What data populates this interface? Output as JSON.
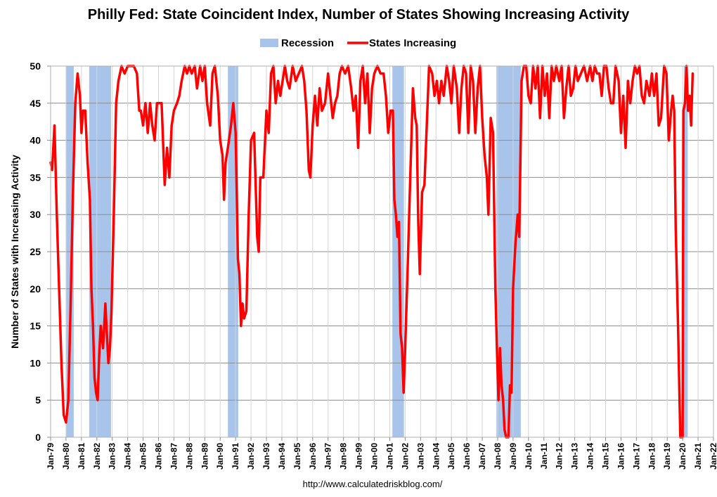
{
  "chart_data": {
    "type": "line",
    "title": "Philly Fed: State Coincident Index, Number of States Showing Increasing Activity",
    "xlabel": "",
    "ylabel": "Number of States with Increasing Activity",
    "ylim": [
      0,
      50
    ],
    "yticks": [
      0,
      5,
      10,
      15,
      20,
      25,
      30,
      35,
      40,
      45,
      50
    ],
    "xlim": [
      1979.0,
      2022.0
    ],
    "xtick_labels": [
      "Jan-79",
      "Jan-80",
      "Jan-81",
      "Jan-82",
      "Jan-83",
      "Jan-84",
      "Jan-85",
      "Jan-86",
      "Jan-87",
      "Jan-88",
      "Jan-89",
      "Jan-90",
      "Jan-91",
      "Jan-92",
      "Jan-93",
      "Jan-94",
      "Jan-95",
      "Jan-96",
      "Jan-97",
      "Jan-98",
      "Jan-99",
      "Jan-00",
      "Jan-01",
      "Jan-02",
      "Jan-03",
      "Jan-04",
      "Jan-05",
      "Jan-06",
      "Jan-07",
      "Jan-08",
      "Jan-09",
      "Jan-10",
      "Jan-11",
      "Jan-12",
      "Jan-13",
      "Jan-14",
      "Jan-15",
      "Jan-16",
      "Jan-17",
      "Jan-18",
      "Jan-19",
      "Jan-20",
      "Jan-21",
      "Jan-22"
    ],
    "grid": true,
    "legend": {
      "position": "top",
      "entries": [
        {
          "label": "Recession",
          "kind": "area",
          "color": "#a9c4ea"
        },
        {
          "label": "States Increasing",
          "kind": "line",
          "color": "#ff0000"
        }
      ]
    },
    "recessions": [
      {
        "start": 1980.0,
        "end": 1980.5
      },
      {
        "start": 1981.5,
        "end": 1982.92
      },
      {
        "start": 1990.5,
        "end": 1991.17
      },
      {
        "start": 2001.17,
        "end": 2001.92
      },
      {
        "start": 2007.92,
        "end": 2009.5
      },
      {
        "start": 2020.08,
        "end": 2020.33
      }
    ],
    "series": [
      {
        "name": "States Increasing",
        "color": "#ff0000",
        "points": [
          [
            1979.0,
            37
          ],
          [
            1979.1,
            36
          ],
          [
            1979.25,
            42
          ],
          [
            1979.4,
            30
          ],
          [
            1979.55,
            20
          ],
          [
            1979.7,
            10
          ],
          [
            1979.85,
            3
          ],
          [
            1980.0,
            2
          ],
          [
            1980.15,
            5
          ],
          [
            1980.3,
            18
          ],
          [
            1980.45,
            33
          ],
          [
            1980.6,
            45
          ],
          [
            1980.75,
            49
          ],
          [
            1980.9,
            46
          ],
          [
            1981.0,
            41
          ],
          [
            1981.1,
            44
          ],
          [
            1981.25,
            44
          ],
          [
            1981.4,
            37
          ],
          [
            1981.55,
            32
          ],
          [
            1981.65,
            20
          ],
          [
            1981.75,
            15
          ],
          [
            1981.85,
            8
          ],
          [
            1981.95,
            6
          ],
          [
            1982.05,
            5
          ],
          [
            1982.15,
            11
          ],
          [
            1982.25,
            15
          ],
          [
            1982.4,
            12
          ],
          [
            1982.55,
            18
          ],
          [
            1982.65,
            14
          ],
          [
            1982.75,
            10
          ],
          [
            1982.85,
            12
          ],
          [
            1982.95,
            17
          ],
          [
            1983.1,
            30
          ],
          [
            1983.25,
            45
          ],
          [
            1983.4,
            48
          ],
          [
            1983.6,
            50
          ],
          [
            1983.8,
            49
          ],
          [
            1984.0,
            50
          ],
          [
            1984.2,
            50
          ],
          [
            1984.4,
            50
          ],
          [
            1984.6,
            49
          ],
          [
            1984.75,
            44
          ],
          [
            1984.85,
            44
          ],
          [
            1985.0,
            42
          ],
          [
            1985.15,
            45
          ],
          [
            1985.3,
            41
          ],
          [
            1985.45,
            45
          ],
          [
            1985.6,
            42
          ],
          [
            1985.75,
            40
          ],
          [
            1985.9,
            45
          ],
          [
            1986.0,
            45
          ],
          [
            1986.2,
            45
          ],
          [
            1986.4,
            34
          ],
          [
            1986.55,
            39
          ],
          [
            1986.7,
            35
          ],
          [
            1986.85,
            42
          ],
          [
            1987.0,
            44
          ],
          [
            1987.2,
            45
          ],
          [
            1987.35,
            46
          ],
          [
            1987.5,
            48
          ],
          [
            1987.7,
            50
          ],
          [
            1987.85,
            49
          ],
          [
            1988.0,
            50
          ],
          [
            1988.15,
            49
          ],
          [
            1988.35,
            50
          ],
          [
            1988.5,
            47
          ],
          [
            1988.7,
            50
          ],
          [
            1988.85,
            48
          ],
          [
            1989.0,
            50
          ],
          [
            1989.15,
            45
          ],
          [
            1989.35,
            42
          ],
          [
            1989.5,
            49
          ],
          [
            1989.65,
            50
          ],
          [
            1989.85,
            46
          ],
          [
            1990.0,
            40
          ],
          [
            1990.15,
            38
          ],
          [
            1990.25,
            32
          ],
          [
            1990.35,
            37
          ],
          [
            1990.5,
            39
          ],
          [
            1990.7,
            42
          ],
          [
            1990.85,
            45
          ],
          [
            1991.0,
            41
          ],
          [
            1991.15,
            24
          ],
          [
            1991.25,
            22
          ],
          [
            1991.35,
            15
          ],
          [
            1991.45,
            18
          ],
          [
            1991.55,
            16
          ],
          [
            1991.7,
            17
          ],
          [
            1991.85,
            30
          ],
          [
            1992.0,
            40
          ],
          [
            1992.2,
            41
          ],
          [
            1992.4,
            27
          ],
          [
            1992.5,
            25
          ],
          [
            1992.6,
            35
          ],
          [
            1992.8,
            35
          ],
          [
            1993.0,
            44
          ],
          [
            1993.15,
            41
          ],
          [
            1993.3,
            49
          ],
          [
            1993.45,
            50
          ],
          [
            1993.6,
            45
          ],
          [
            1993.75,
            48
          ],
          [
            1993.9,
            46
          ],
          [
            1994.05,
            48
          ],
          [
            1994.2,
            50
          ],
          [
            1994.35,
            48
          ],
          [
            1994.5,
            47
          ],
          [
            1994.7,
            50
          ],
          [
            1994.9,
            48
          ],
          [
            1995.1,
            49
          ],
          [
            1995.3,
            50
          ],
          [
            1995.45,
            48
          ],
          [
            1995.6,
            44
          ],
          [
            1995.75,
            36
          ],
          [
            1995.85,
            35
          ],
          [
            1996.0,
            42
          ],
          [
            1996.15,
            46
          ],
          [
            1996.3,
            42
          ],
          [
            1996.45,
            47
          ],
          [
            1996.6,
            44
          ],
          [
            1996.8,
            45
          ],
          [
            1997.0,
            49
          ],
          [
            1997.15,
            46
          ],
          [
            1997.3,
            43
          ],
          [
            1997.45,
            45
          ],
          [
            1997.6,
            46
          ],
          [
            1997.75,
            49
          ],
          [
            1997.9,
            50
          ],
          [
            1998.1,
            49
          ],
          [
            1998.3,
            50
          ],
          [
            1998.5,
            47
          ],
          [
            1998.65,
            44
          ],
          [
            1998.8,
            46
          ],
          [
            1998.95,
            39
          ],
          [
            1999.1,
            48
          ],
          [
            1999.25,
            50
          ],
          [
            1999.4,
            45
          ],
          [
            1999.55,
            49
          ],
          [
            1999.7,
            41
          ],
          [
            1999.85,
            47
          ],
          [
            2000.0,
            49
          ],
          [
            2000.2,
            50
          ],
          [
            2000.4,
            49
          ],
          [
            2000.6,
            49
          ],
          [
            2000.75,
            46
          ],
          [
            2000.9,
            41
          ],
          [
            2001.05,
            44
          ],
          [
            2001.2,
            44
          ],
          [
            2001.3,
            32
          ],
          [
            2001.4,
            30
          ],
          [
            2001.5,
            27
          ],
          [
            2001.6,
            29
          ],
          [
            2001.7,
            14
          ],
          [
            2001.8,
            12
          ],
          [
            2001.9,
            6
          ],
          [
            2002.0,
            12
          ],
          [
            2002.15,
            22
          ],
          [
            2002.3,
            33
          ],
          [
            2002.5,
            47
          ],
          [
            2002.65,
            43
          ],
          [
            2002.75,
            42
          ],
          [
            2002.85,
            29
          ],
          [
            2002.95,
            22
          ],
          [
            2003.1,
            33
          ],
          [
            2003.25,
            34
          ],
          [
            2003.4,
            42
          ],
          [
            2003.55,
            50
          ],
          [
            2003.75,
            49
          ],
          [
            2003.9,
            46
          ],
          [
            2004.05,
            48
          ],
          [
            2004.2,
            45
          ],
          [
            2004.35,
            48
          ],
          [
            2004.5,
            46
          ],
          [
            2004.7,
            50
          ],
          [
            2004.85,
            48
          ],
          [
            2005.0,
            45
          ],
          [
            2005.15,
            50
          ],
          [
            2005.35,
            47
          ],
          [
            2005.5,
            41
          ],
          [
            2005.65,
            47
          ],
          [
            2005.8,
            50
          ],
          [
            2005.95,
            49
          ],
          [
            2006.1,
            41
          ],
          [
            2006.25,
            50
          ],
          [
            2006.4,
            48
          ],
          [
            2006.55,
            41
          ],
          [
            2006.7,
            47
          ],
          [
            2006.85,
            50
          ],
          [
            2007.0,
            43
          ],
          [
            2007.15,
            38
          ],
          [
            2007.3,
            35
          ],
          [
            2007.4,
            30
          ],
          [
            2007.55,
            43
          ],
          [
            2007.7,
            41
          ],
          [
            2007.85,
            20
          ],
          [
            2007.95,
            12
          ],
          [
            2008.05,
            5
          ],
          [
            2008.15,
            12
          ],
          [
            2008.25,
            7
          ],
          [
            2008.35,
            5
          ],
          [
            2008.45,
            1
          ],
          [
            2008.55,
            0
          ],
          [
            2008.7,
            0
          ],
          [
            2008.8,
            7
          ],
          [
            2008.9,
            6
          ],
          [
            2009.0,
            20
          ],
          [
            2009.15,
            26
          ],
          [
            2009.3,
            30
          ],
          [
            2009.4,
            27
          ],
          [
            2009.55,
            48
          ],
          [
            2009.7,
            50
          ],
          [
            2009.85,
            50
          ],
          [
            2010.0,
            46
          ],
          [
            2010.15,
            45
          ],
          [
            2010.3,
            50
          ],
          [
            2010.45,
            47
          ],
          [
            2010.6,
            50
          ],
          [
            2010.75,
            43
          ],
          [
            2010.9,
            50
          ],
          [
            2011.05,
            46
          ],
          [
            2011.2,
            49
          ],
          [
            2011.35,
            43
          ],
          [
            2011.5,
            50
          ],
          [
            2011.65,
            48
          ],
          [
            2011.8,
            50
          ],
          [
            2012.0,
            48
          ],
          [
            2012.15,
            50
          ],
          [
            2012.3,
            43
          ],
          [
            2012.45,
            47
          ],
          [
            2012.6,
            50
          ],
          [
            2012.75,
            46
          ],
          [
            2012.9,
            47
          ],
          [
            2013.05,
            50
          ],
          [
            2013.2,
            48
          ],
          [
            2013.4,
            49
          ],
          [
            2013.6,
            50
          ],
          [
            2013.8,
            48
          ],
          [
            2014.0,
            50
          ],
          [
            2014.15,
            48
          ],
          [
            2014.3,
            50
          ],
          [
            2014.45,
            49
          ],
          [
            2014.6,
            49
          ],
          [
            2014.75,
            46
          ],
          [
            2014.9,
            50
          ],
          [
            2015.05,
            50
          ],
          [
            2015.2,
            47
          ],
          [
            2015.35,
            45
          ],
          [
            2015.5,
            45
          ],
          [
            2015.65,
            50
          ],
          [
            2015.85,
            48
          ],
          [
            2016.0,
            41
          ],
          [
            2016.15,
            46
          ],
          [
            2016.3,
            39
          ],
          [
            2016.45,
            48
          ],
          [
            2016.6,
            45
          ],
          [
            2016.75,
            48
          ],
          [
            2016.9,
            50
          ],
          [
            2017.05,
            49
          ],
          [
            2017.2,
            50
          ],
          [
            2017.35,
            46
          ],
          [
            2017.5,
            45
          ],
          [
            2017.65,
            48
          ],
          [
            2017.85,
            46
          ],
          [
            2018.0,
            49
          ],
          [
            2018.15,
            46
          ],
          [
            2018.3,
            49
          ],
          [
            2018.45,
            42
          ],
          [
            2018.6,
            43
          ],
          [
            2018.8,
            50
          ],
          [
            2018.95,
            49
          ],
          [
            2019.1,
            40
          ],
          [
            2019.25,
            44
          ],
          [
            2019.35,
            46
          ],
          [
            2019.45,
            44
          ],
          [
            2019.55,
            28
          ],
          [
            2019.7,
            15
          ],
          [
            2019.85,
            0
          ],
          [
            2020.0,
            0
          ],
          [
            2020.05,
            44
          ],
          [
            2020.15,
            45
          ],
          [
            2020.25,
            50
          ],
          [
            2020.35,
            44
          ],
          [
            2020.45,
            46
          ],
          [
            2020.55,
            42
          ],
          [
            2020.65,
            49
          ]
        ]
      }
    ]
  },
  "source_note": "http://www.calculatedriskblog.com/"
}
